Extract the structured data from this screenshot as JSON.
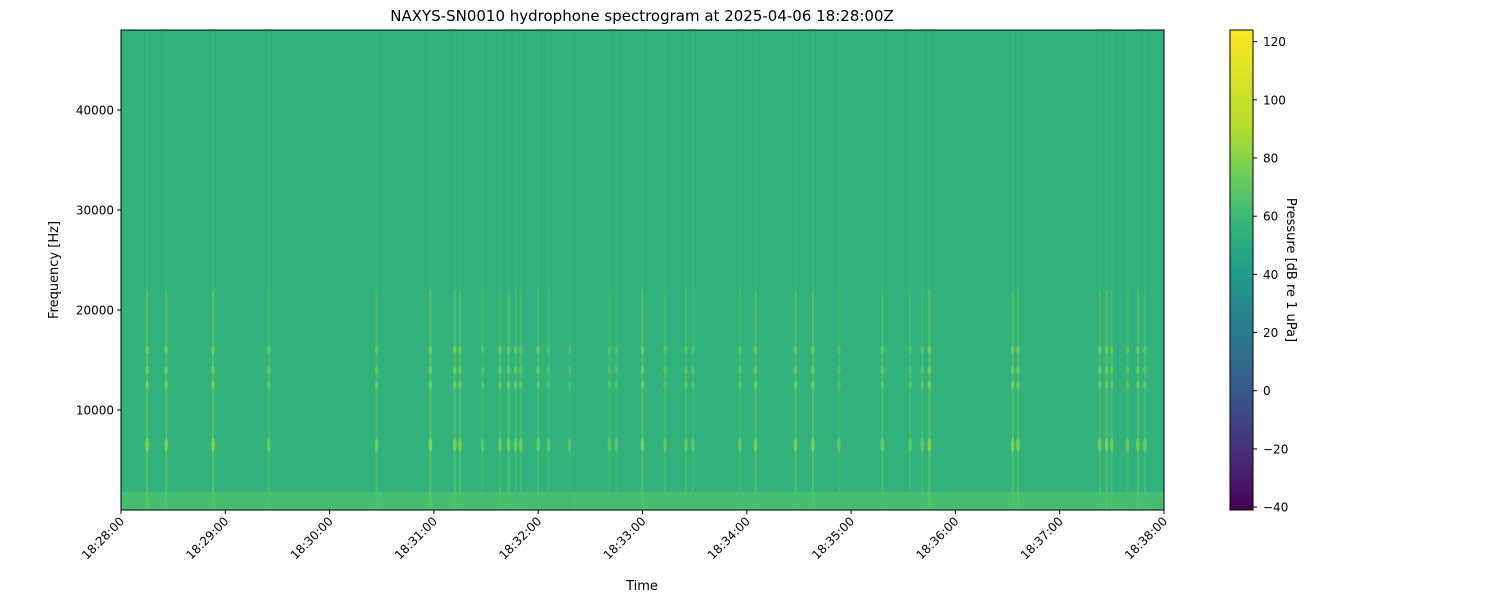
{
  "chart_data": {
    "type": "heatmap",
    "subtype": "spectrogram",
    "title": "NAXYS-SN0010 hydrophone spectrogram at 2025-04-06 18:28:00Z",
    "xlabel": "Time",
    "ylabel": "Frequency [Hz]",
    "x_ticks": [
      "18:28:00",
      "18:29:00",
      "18:30:00",
      "18:31:00",
      "18:32:00",
      "18:33:00",
      "18:34:00",
      "18:35:00",
      "18:36:00",
      "18:37:00",
      "18:38:00"
    ],
    "xlim": [
      "18:28:00",
      "18:38:00"
    ],
    "y_ticks": [
      10000,
      20000,
      30000,
      40000
    ],
    "ylim": [
      0,
      48000
    ],
    "colormap": "viridis",
    "colorbar": {
      "label": "Pressure [dB re 1 uPa]",
      "ticks": [
        -40,
        -20,
        0,
        20,
        40,
        60,
        80,
        100,
        120
      ],
      "range": [
        -41,
        124
      ]
    },
    "background_level_db": 55,
    "low_frequency_band": {
      "max_hz": 1000,
      "level_db": 65
    },
    "tonal_bands_hz": [
      6500,
      12500,
      14000,
      16000
    ],
    "transient_events": [
      {
        "time": "18:28:15",
        "level_db": 80
      },
      {
        "time": "18:28:26",
        "level_db": 78
      },
      {
        "time": "18:28:53",
        "level_db": 80
      },
      {
        "time": "18:29:25",
        "level_db": 74
      },
      {
        "time": "18:30:27",
        "level_db": 76
      },
      {
        "time": "18:30:58",
        "level_db": 80
      },
      {
        "time": "18:31:12",
        "level_db": 78
      },
      {
        "time": "18:31:15",
        "level_db": 76
      },
      {
        "time": "18:31:28",
        "level_db": 70
      },
      {
        "time": "18:31:38",
        "level_db": 74
      },
      {
        "time": "18:31:43",
        "level_db": 76
      },
      {
        "time": "18:31:47",
        "level_db": 74
      },
      {
        "time": "18:31:50",
        "level_db": 74
      },
      {
        "time": "18:32:00",
        "level_db": 74
      },
      {
        "time": "18:32:06",
        "level_db": 70
      },
      {
        "time": "18:32:18",
        "level_db": 68
      },
      {
        "time": "18:32:41",
        "level_db": 70
      },
      {
        "time": "18:32:45",
        "level_db": 70
      },
      {
        "time": "18:33:00",
        "level_db": 78
      },
      {
        "time": "18:33:13",
        "level_db": 72
      },
      {
        "time": "18:33:25",
        "level_db": 72
      },
      {
        "time": "18:33:29",
        "level_db": 70
      },
      {
        "time": "18:33:56",
        "level_db": 72
      },
      {
        "time": "18:34:05",
        "level_db": 76
      },
      {
        "time": "18:34:28",
        "level_db": 76
      },
      {
        "time": "18:34:38",
        "level_db": 78
      },
      {
        "time": "18:34:53",
        "level_db": 70
      },
      {
        "time": "18:35:18",
        "level_db": 74
      },
      {
        "time": "18:35:34",
        "level_db": 70
      },
      {
        "time": "18:35:41",
        "level_db": 72
      },
      {
        "time": "18:35:45",
        "level_db": 80
      },
      {
        "time": "18:36:33",
        "level_db": 78
      },
      {
        "time": "18:36:36",
        "level_db": 76
      },
      {
        "time": "18:37:23",
        "level_db": 76
      },
      {
        "time": "18:37:27",
        "level_db": 78
      },
      {
        "time": "18:37:30",
        "level_db": 74
      },
      {
        "time": "18:37:39",
        "level_db": 72
      },
      {
        "time": "18:37:45",
        "level_db": 76
      },
      {
        "time": "18:37:49",
        "level_db": 74
      }
    ]
  }
}
